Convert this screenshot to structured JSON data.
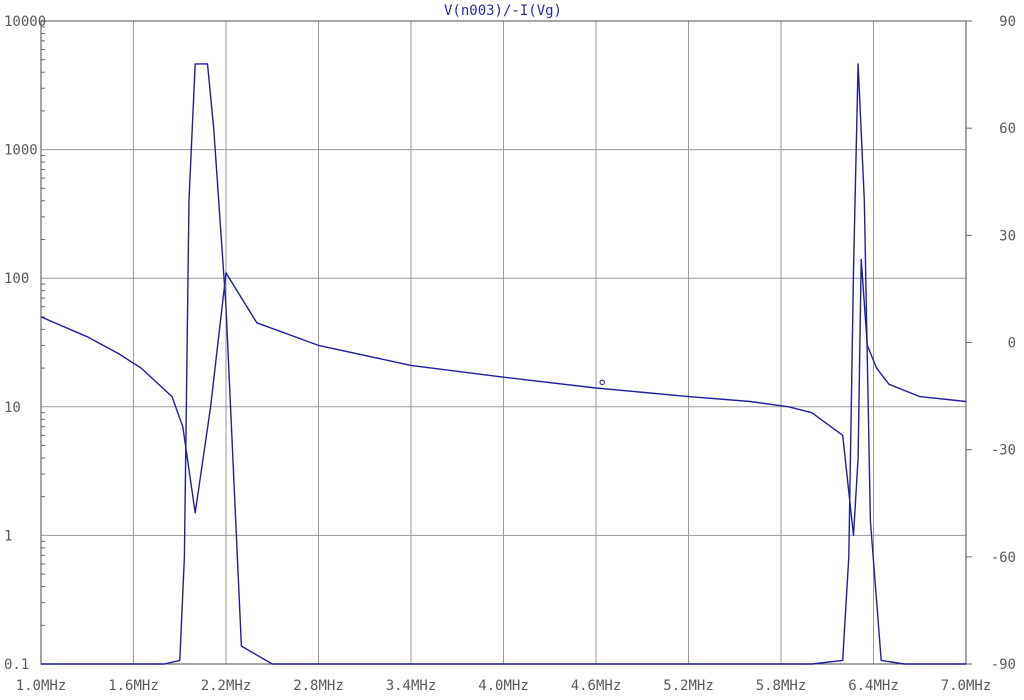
{
  "chart_data": {
    "type": "line",
    "title": "V(n003)/-I(Vg)",
    "xlabel": "",
    "ylabel": "",
    "x_ticks": [
      "1.0MHz",
      "1.6MHz",
      "2.2MHz",
      "2.8MHz",
      "3.4MHz",
      "4.0MHz",
      "4.6MHz",
      "5.2MHz",
      "5.8MHz",
      "6.4MHz",
      "7.0MHz"
    ],
    "x_range": [
      1.0,
      7.0
    ],
    "x_unit": "MHz",
    "y_left_ticks": [
      "0.1",
      "1",
      "10",
      "100",
      "1000",
      "10000"
    ],
    "y_left_range": [
      0.1,
      10000
    ],
    "y_left_scale": "log",
    "y_right_ticks": [
      "-90",
      "-60",
      "-30",
      "0",
      "30",
      "60",
      "90"
    ],
    "y_right_range": [
      -90,
      90
    ],
    "grid": true,
    "line_color": "#1f1f9e",
    "series": [
      {
        "axis": "left",
        "x": [
          1.0,
          1.3,
          1.5,
          1.65,
          1.85,
          1.92,
          2.0,
          2.1,
          2.2,
          2.4,
          2.8,
          3.4,
          4.0,
          4.6,
          5.2,
          5.6,
          5.85,
          6.0,
          6.2,
          6.27,
          6.3,
          6.32,
          6.36,
          6.42,
          6.5,
          6.7,
          7.0
        ],
        "y": [
          50,
          35,
          26,
          20,
          12,
          7,
          1.5,
          10,
          110,
          45,
          30,
          21,
          17,
          14,
          12,
          11,
          10,
          9,
          6,
          1,
          4,
          140,
          30,
          20,
          15,
          12,
          11
        ]
      },
      {
        "axis": "right",
        "x": [
          1.0,
          1.5,
          1.8,
          1.9,
          1.93,
          1.96,
          2.0,
          2.08,
          2.12,
          2.2,
          2.3,
          2.5,
          2.8,
          3.4,
          4.0,
          4.6,
          5.2,
          5.6,
          6.0,
          6.2,
          6.24,
          6.27,
          6.3,
          6.34,
          6.38,
          6.45,
          6.6,
          7.0
        ],
        "y": [
          -90,
          -90,
          -90,
          -89,
          -60,
          40,
          78,
          78,
          60,
          10,
          -85,
          -90,
          -90,
          -90,
          -90,
          -90,
          -90,
          -90,
          -90,
          -89,
          -60,
          20,
          78,
          40,
          -50,
          -89,
          -90,
          -90
        ]
      }
    ],
    "annotation_marker": {
      "x": 4.64,
      "y": 15.5
    }
  }
}
